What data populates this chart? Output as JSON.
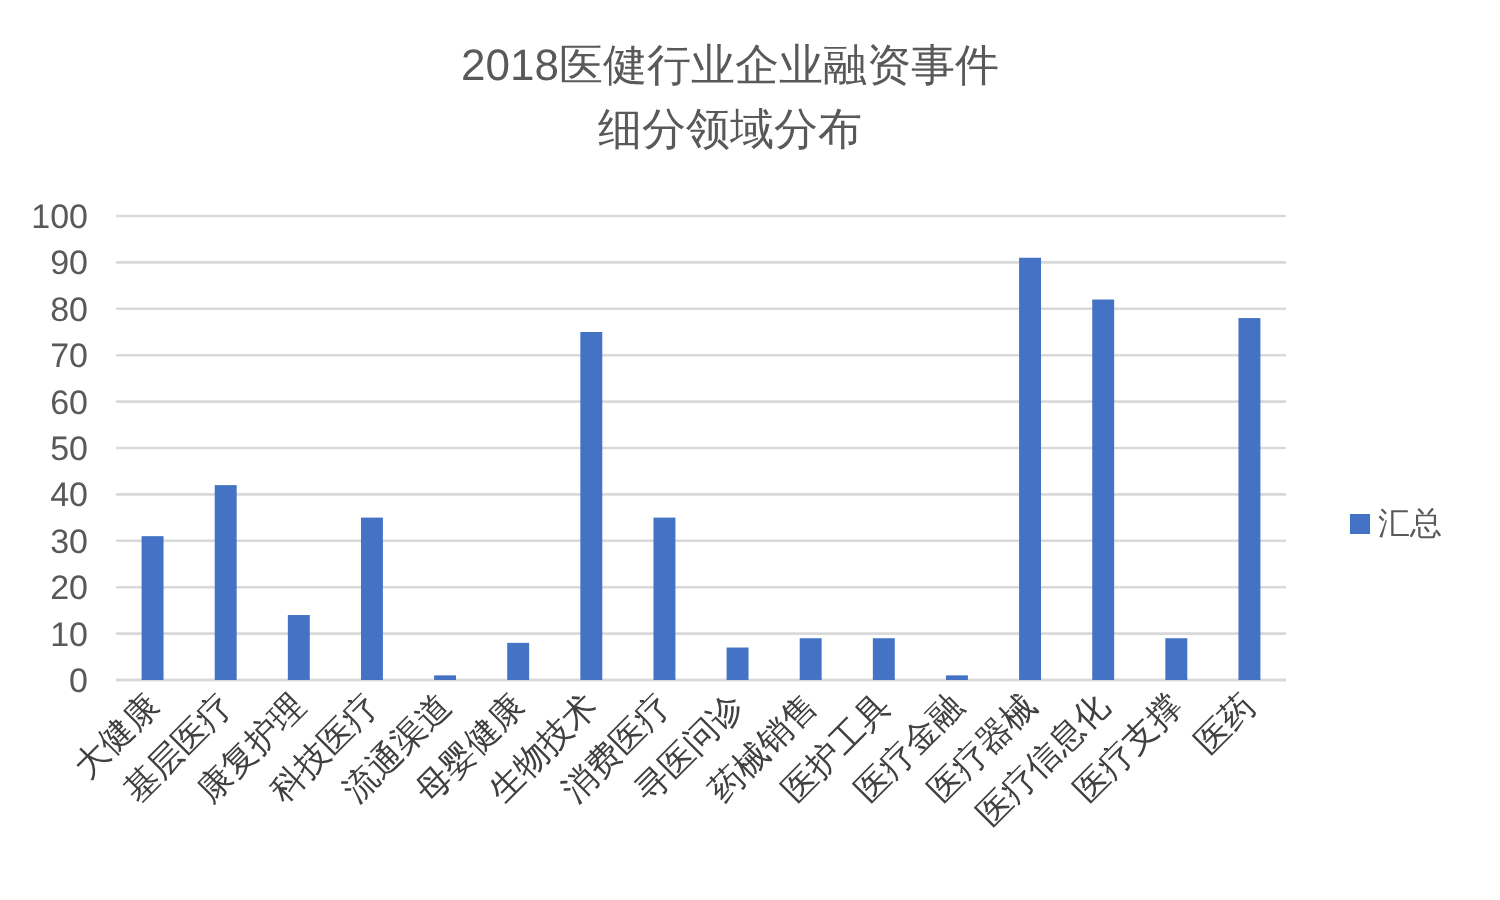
{
  "chart_data": {
    "type": "bar",
    "title": "2018医健行业企业融资事件",
    "subtitle": "细分领域分布",
    "categories": [
      "大健康",
      "基层医疗",
      "康复护理",
      "科技医疗",
      "流通渠道",
      "母婴健康",
      "生物技术",
      "消费医疗",
      "寻医问诊",
      "药械销售",
      "医护工具",
      "医疗金融",
      "医疗器械",
      "医疗信息化",
      "医疗支撑",
      "医药"
    ],
    "series": [
      {
        "name": "汇总",
        "color": "#4472c4",
        "values": [
          31,
          42,
          14,
          35,
          1,
          8,
          75,
          35,
          7,
          9,
          9,
          1,
          91,
          82,
          9,
          78
        ]
      }
    ],
    "ylim": [
      0,
      100
    ],
    "yticks": [
      0,
      10,
      20,
      30,
      40,
      50,
      60,
      70,
      80,
      90,
      100
    ],
    "grid": "y",
    "legend": "right"
  }
}
